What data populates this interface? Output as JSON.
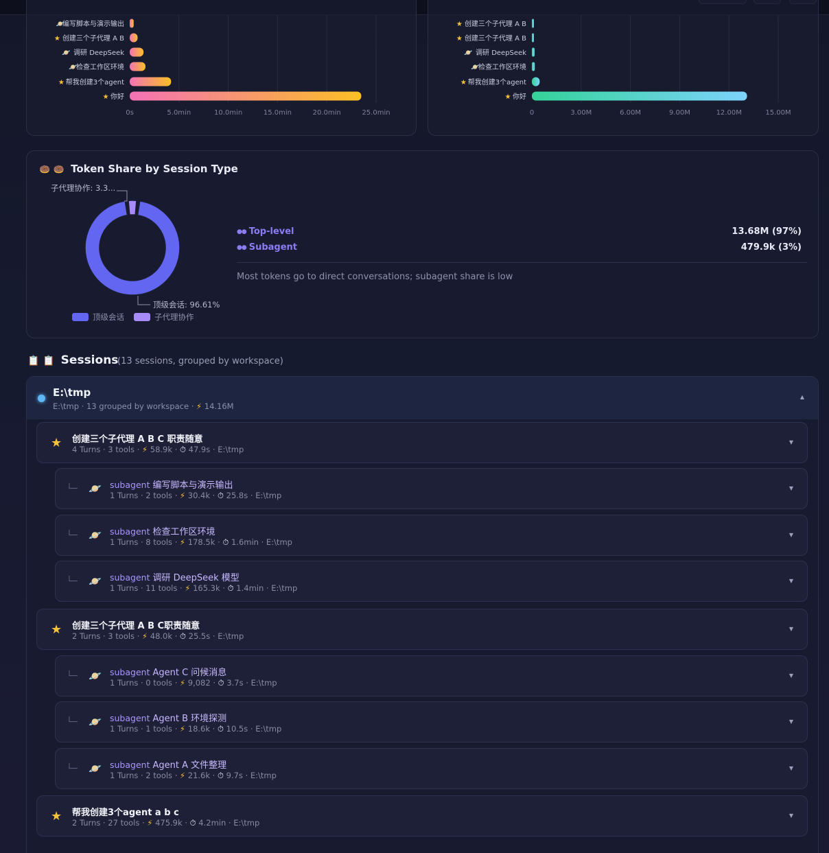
{
  "charts": {
    "duration_bar": {
      "type": "bar",
      "orientation": "horizontal",
      "categories": [
        "编写脚本与演示输出",
        "创建三个子代理 A B",
        "调研 DeepSeek",
        "检查工作区环境",
        "帮我创建3个agent",
        "你好"
      ],
      "category_icons": [
        "planet",
        "star",
        "planet",
        "planet",
        "star",
        "star"
      ],
      "values": [
        0.4,
        0.8,
        1.4,
        1.6,
        4.2,
        23.5
      ],
      "unit": "min",
      "xlim": [
        0,
        25
      ],
      "ticks": [
        "0s",
        "5.0min",
        "10.0min",
        "15.0min",
        "20.0min",
        "25.0min"
      ],
      "colors": [
        "#f472b6",
        "#fbbf24"
      ]
    },
    "tokens_bar": {
      "type": "bar",
      "orientation": "horizontal",
      "categories": [
        "创建三个子代理 A B",
        "创建三个子代理 A B",
        "调研 DeepSeek",
        "检查工作区环境",
        "帮我创建3个agent",
        "你好"
      ],
      "category_icons": [
        "star",
        "star",
        "planet",
        "planet",
        "star",
        "star"
      ],
      "values": [
        0.0588,
        0.048,
        0.1653,
        0.1785,
        0.4759,
        13.1
      ],
      "unit": "M",
      "xlim": [
        0,
        15
      ],
      "ticks": [
        "0",
        "3.00M",
        "6.00M",
        "9.00M",
        "12.00M",
        "15.00M"
      ],
      "colors": [
        "#34d399",
        "#7dd3fc"
      ]
    }
  },
  "chart_data": {
    "type": "pie",
    "title": "Token Share by Session Type",
    "series": [
      {
        "name": "顶级会话",
        "value": 96.61
      },
      {
        "name": "子代理协作",
        "value": 3.39
      }
    ],
    "labels": [
      "顶级会话: 96.61%",
      "子代理协作: 3.3..."
    ],
    "legend": "bottom",
    "colors": [
      "#6366f1",
      "#a78bfa"
    ]
  },
  "donut": {
    "title": "Token Share by Session Type",
    "title_icons": "🍩 🍩",
    "label_top": "子代理协作: 3.3...",
    "label_bottom": "顶级会话: 96.61%",
    "legend_a": "顶级会话",
    "legend_b": "子代理协作",
    "rows": [
      {
        "name": "Top-level",
        "value": "13.68M  (97%)"
      },
      {
        "name": "Subagent",
        "value": "479.9k  (3%)"
      }
    ],
    "note": "Most tokens go to direct conversations; subagent share is low"
  },
  "sessions": {
    "title_icons": "📋 📋",
    "title": "Sessions",
    "subtitle": "(13 sessions, grouped by workspace)",
    "workspace": {
      "name": "E:\\tmp",
      "meta_prefix": "E:\\tmp · 13 grouped by workspace · ",
      "tokens": "14.16M"
    },
    "rows": [
      {
        "kind": "top",
        "title": "创建三个子代理 A B C 职责随意",
        "turns": "4 Turns · 3 tools · ",
        "tokens": "58.9k",
        "time": "47.9s",
        "path": "E:\\tmp"
      },
      {
        "kind": "sub",
        "tag": "subagent",
        "title": "编写脚本与演示输出",
        "turns": "1 Turns · 2 tools · ",
        "tokens": "30.4k",
        "time": "25.8s",
        "path": "E:\\tmp"
      },
      {
        "kind": "sub",
        "tag": "subagent",
        "title": "检查工作区环境",
        "turns": "1 Turns · 8 tools · ",
        "tokens": "178.5k",
        "time": "1.6min",
        "path": "E:\\tmp"
      },
      {
        "kind": "sub",
        "tag": "subagent",
        "title": "调研 DeepSeek 模型",
        "turns": "1 Turns · 11 tools · ",
        "tokens": "165.3k",
        "time": "1.4min",
        "path": "E:\\tmp"
      },
      {
        "kind": "top",
        "title": "创建三个子代理 A B C职责随意",
        "turns": "2 Turns · 3 tools · ",
        "tokens": "48.0k",
        "time": "25.5s",
        "path": "E:\\tmp"
      },
      {
        "kind": "sub",
        "tag": "subagent",
        "title": "Agent C 问候消息",
        "turns": "1 Turns · 0 tools · ",
        "tokens": "9,082",
        "time": "3.7s",
        "path": "E:\\tmp"
      },
      {
        "kind": "sub",
        "tag": "subagent",
        "title": "Agent B 环境探测",
        "turns": "1 Turns · 1 tools · ",
        "tokens": "18.6k",
        "time": "10.5s",
        "path": "E:\\tmp"
      },
      {
        "kind": "sub",
        "tag": "subagent",
        "title": "Agent A 文件整理",
        "turns": "1 Turns · 2 tools · ",
        "tokens": "21.6k",
        "time": "9.7s",
        "path": "E:\\tmp"
      },
      {
        "kind": "top",
        "title": "帮我创建3个agent a b c",
        "turns": "2 Turns · 27 tools · ",
        "tokens": "475.9k",
        "time": "4.2min",
        "path": "E:\\tmp"
      }
    ]
  }
}
